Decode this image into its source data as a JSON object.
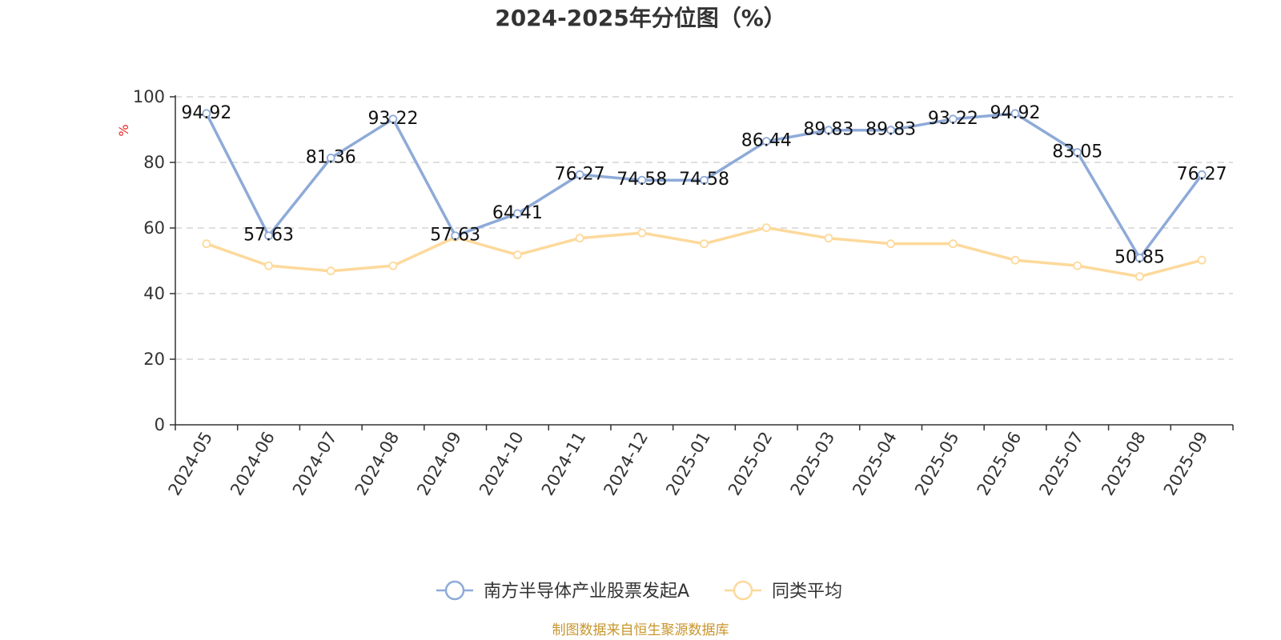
{
  "title": "2024-2025年分位图（%）",
  "y_unit": "%",
  "source": "制图数据来自恒生聚源数据库",
  "chart_data": {
    "type": "line",
    "title": "2024-2025年分位图（%）",
    "xlabel": "",
    "ylabel": "%",
    "ylim": [
      0,
      100
    ],
    "y_ticks": [
      0,
      20,
      40,
      60,
      80,
      100
    ],
    "grid": true,
    "legend_position": "bottom-center",
    "categories": [
      "2024-05",
      "2024-06",
      "2024-07",
      "2024-08",
      "2024-09",
      "2024-10",
      "2024-11",
      "2024-12",
      "2025-01",
      "2025-02",
      "2025-03",
      "2025-04",
      "2025-05",
      "2025-06",
      "2025-07",
      "2025-08",
      "2025-09"
    ],
    "series": [
      {
        "name": "南方半导体产业股票发起A",
        "color": "#8eaad8",
        "show_labels": true,
        "values": [
          94.92,
          57.63,
          81.36,
          93.22,
          57.63,
          64.41,
          76.27,
          74.58,
          74.58,
          86.44,
          89.83,
          89.83,
          93.22,
          94.92,
          83.05,
          50.85,
          76.27
        ],
        "labels": [
          "94.92",
          "57.63",
          "81.36",
          "93.22",
          "57.63",
          "64.41",
          "76.27",
          "74.58",
          "74.58",
          "86.44",
          "89.83",
          "89.83",
          "93.22",
          "94.92",
          "83.05",
          "50.85",
          "76.27"
        ]
      },
      {
        "name": "同类平均",
        "color": "#fdd99b",
        "show_labels": false,
        "values": [
          55.2,
          48.5,
          46.9,
          48.5,
          57.2,
          51.8,
          56.9,
          58.5,
          55.2,
          60.1,
          56.9,
          55.2,
          55.2,
          50.2,
          48.5,
          45.2,
          50.2
        ]
      }
    ]
  }
}
